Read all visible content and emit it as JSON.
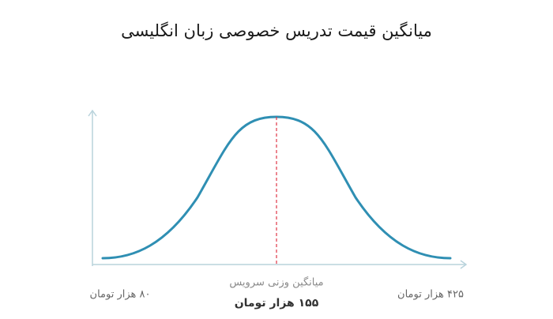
{
  "title": "میانگین قیمت تدریس خصوصی زبان انگلیسی",
  "axis": {
    "min_label": "۸۰ هزار تومان",
    "max_label": "۴۲۵ هزار تومان"
  },
  "mean": {
    "caption": "میانگین وزنی سرویس",
    "label": "۱۵۵ هزار تومان"
  }
}
